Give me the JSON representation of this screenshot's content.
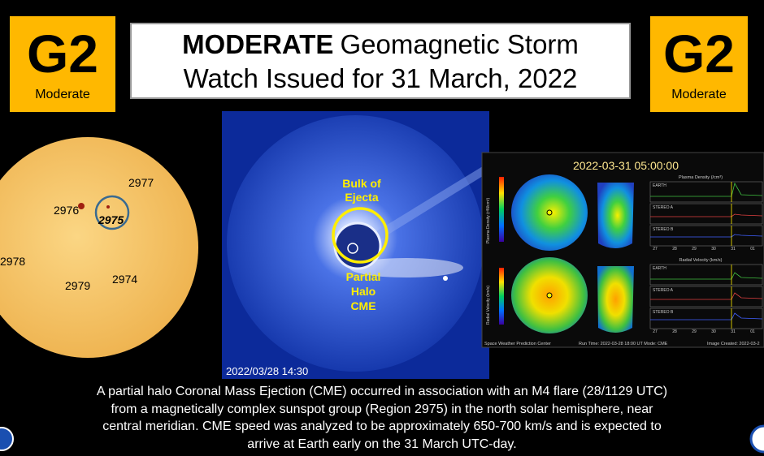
{
  "badges": [
    {
      "level": "G2",
      "label": "Moderate"
    },
    {
      "level": "G2",
      "label": "Moderate"
    }
  ],
  "title": {
    "bold": "MODERATE",
    "line1": "Geomagnetic Storm",
    "line2": "Watch Issued for 31 March, 2022"
  },
  "sun": {
    "regions": [
      "2977",
      "2976",
      "2975",
      "2978",
      "2979",
      "2974"
    ]
  },
  "coronagraph": {
    "ejecta": [
      "Bulk of",
      "Ejecta"
    ],
    "halo": [
      "Partial",
      "Halo",
      "CME"
    ],
    "timestamp": "2022/03/28 14:30"
  },
  "model": {
    "timestamp": "2022-03-31 05:00:00",
    "density_title": "Plasma Density (/cm³)",
    "velocity_title": "Radial Velocity (km/s)",
    "density_axis": "Plasma Density (r²N/cm³)",
    "velocity_axis": "Radial Velocity (km/s)",
    "stations": [
      "EARTH",
      "STEREO A",
      "STEREO B"
    ],
    "days": [
      "27",
      "28",
      "29",
      "30",
      "31",
      "01"
    ],
    "footer": [
      "Space Weather Prediction Center",
      "Run Time: 2022-03-28 18:00 UT   Mode: CME",
      "Image Created: 2022-03-2"
    ]
  },
  "caption": [
    "A partial halo Coronal Mass Ejection (CME) occurred in association with an M4 flare (28/1129 UTC)",
    "from a magnetically complex sunspot group (Region 2975) in the north solar hemisphere, near",
    "central meridian. CME speed was analyzed to be approximately 650-700 km/s and is expected to",
    "arrive at Earth early on the 31 March UTC-day."
  ]
}
